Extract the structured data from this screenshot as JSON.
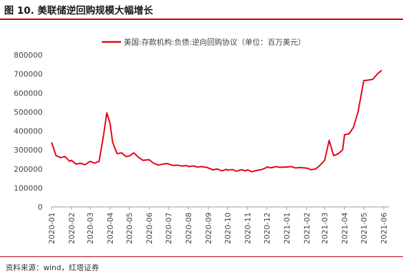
{
  "figure": {
    "title": "图 10. 美联储逆回购规模大幅增长",
    "source": "资料来源：wind，红塔证券"
  },
  "colors": {
    "line": "#e60012",
    "axis": "#999999",
    "text": "#444444",
    "rule": "#c00000"
  },
  "chart_data": {
    "type": "line",
    "title": "",
    "xlabel": "",
    "ylabel": "",
    "legend_position": "top-right",
    "grid": false,
    "ylim": [
      0,
      800000
    ],
    "yticks": [
      0,
      100000,
      200000,
      300000,
      400000,
      500000,
      600000,
      700000,
      800000
    ],
    "ytick_labels": [
      "0",
      "100000",
      "200000",
      "300000",
      "400000",
      "500000",
      "600000",
      "700000",
      "800000"
    ],
    "xtick_labels": [
      "2020-01",
      "2020-02",
      "2020-03",
      "2020-04",
      "2020-05",
      "2020-06",
      "2020-07",
      "2020-08",
      "2020-09",
      "2020-10",
      "2020-11",
      "2020-12",
      "2021-01",
      "2021-02",
      "2021-03",
      "2021-04",
      "2021-05",
      "2021-06"
    ],
    "series": [
      {
        "name": "美国:存款机构:负债:逆向回购协议（单位：百万美元）",
        "values": [
          [
            "2020-01",
            340000
          ],
          [
            "2020-01-08",
            270000
          ],
          [
            "2020-01-15",
            260000
          ],
          [
            "2020-01-22",
            265000
          ],
          [
            "2020-01-29",
            240000
          ],
          [
            "2020-02",
            245000
          ],
          [
            "2020-02-08",
            225000
          ],
          [
            "2020-02-15",
            230000
          ],
          [
            "2020-02-22",
            222000
          ],
          [
            "2020-03",
            240000
          ],
          [
            "2020-03-08",
            230000
          ],
          [
            "2020-03-15",
            240000
          ],
          [
            "2020-03-22",
            380000
          ],
          [
            "2020-03-27",
            495000
          ],
          [
            "2020-04",
            440000
          ],
          [
            "2020-04-05",
            340000
          ],
          [
            "2020-04-12",
            280000
          ],
          [
            "2020-04-19",
            285000
          ],
          [
            "2020-04-26",
            265000
          ],
          [
            "2020-05",
            268000
          ],
          [
            "2020-05-08",
            285000
          ],
          [
            "2020-05-15",
            262000
          ],
          [
            "2020-05-22",
            245000
          ],
          [
            "2020-05-29",
            248000
          ],
          [
            "2020-06",
            248000
          ],
          [
            "2020-06-08",
            230000
          ],
          [
            "2020-06-15",
            220000
          ],
          [
            "2020-06-22",
            225000
          ],
          [
            "2020-06-29",
            228000
          ],
          [
            "2020-07",
            226000
          ],
          [
            "2020-07-08",
            218000
          ],
          [
            "2020-07-15",
            220000
          ],
          [
            "2020-07-22",
            215000
          ],
          [
            "2020-07-29",
            218000
          ],
          [
            "2020-08",
            212000
          ],
          [
            "2020-08-08",
            216000
          ],
          [
            "2020-08-15",
            210000
          ],
          [
            "2020-08-22",
            212000
          ],
          [
            "2020-08-29",
            208000
          ],
          [
            "2020-09",
            205000
          ],
          [
            "2020-09-08",
            195000
          ],
          [
            "2020-09-15",
            200000
          ],
          [
            "2020-09-22",
            190000
          ],
          [
            "2020-09-29",
            198000
          ],
          [
            "2020-10",
            193000
          ],
          [
            "2020-10-08",
            197000
          ],
          [
            "2020-10-15",
            188000
          ],
          [
            "2020-10-22",
            196000
          ],
          [
            "2020-10-29",
            190000
          ],
          [
            "2020-11",
            195000
          ],
          [
            "2020-11-08",
            185000
          ],
          [
            "2020-11-15",
            192000
          ],
          [
            "2020-11-22",
            196000
          ],
          [
            "2020-11-29",
            205000
          ],
          [
            "2020-12",
            210000
          ],
          [
            "2020-12-08",
            206000
          ],
          [
            "2020-12-15",
            212000
          ],
          [
            "2020-12-22",
            208000
          ],
          [
            "2020-12-29",
            210000
          ],
          [
            "2021-01",
            210000
          ],
          [
            "2021-01-08",
            212000
          ],
          [
            "2021-01-15",
            205000
          ],
          [
            "2021-01-22",
            207000
          ],
          [
            "2021-01-29",
            205000
          ],
          [
            "2021-02",
            204000
          ],
          [
            "2021-02-08",
            196000
          ],
          [
            "2021-02-15",
            200000
          ],
          [
            "2021-02-22",
            220000
          ],
          [
            "2021-03",
            245000
          ],
          [
            "2021-03-08",
            350000
          ],
          [
            "2021-03-15",
            270000
          ],
          [
            "2021-03-22",
            280000
          ],
          [
            "2021-03-29",
            300000
          ],
          [
            "2021-04",
            380000
          ],
          [
            "2021-04-08",
            385000
          ],
          [
            "2021-04-15",
            420000
          ],
          [
            "2021-04-22",
            500000
          ],
          [
            "2021-05",
            665000
          ],
          [
            "2021-05-08",
            668000
          ],
          [
            "2021-05-15",
            672000
          ],
          [
            "2021-05-22",
            700000
          ],
          [
            "2021-05-29",
            720000
          ]
        ]
      }
    ]
  }
}
